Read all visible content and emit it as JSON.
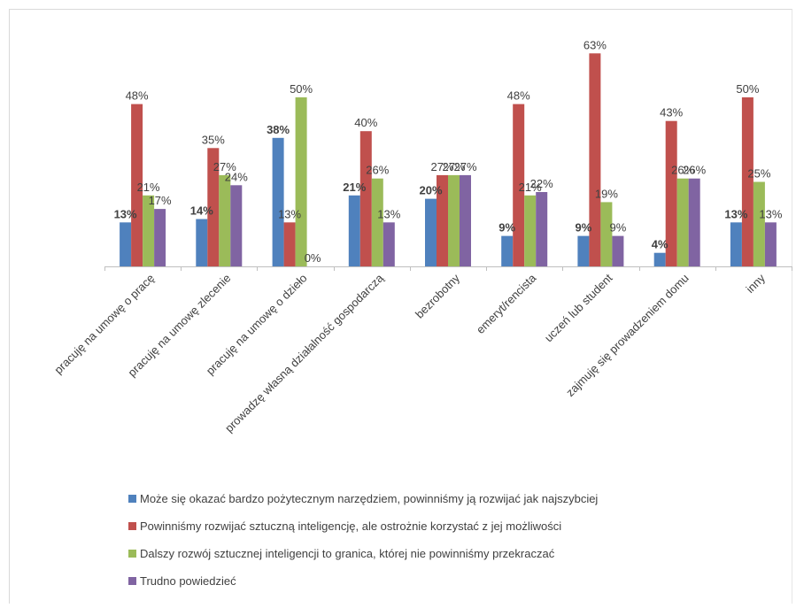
{
  "chart_data": {
    "type": "bar",
    "categories": [
      "pracuję na umowę o pracę",
      "pracuję na umowę zlecenie",
      "pracuję na umowę o dzieło",
      "prowadzę własną działalność gospodarczą",
      "bezrobotny",
      "emeryt/rencista",
      "uczeń lub student",
      "zajmuję się prowadzeniem domu",
      "inny"
    ],
    "series": [
      {
        "name": "Może się okazać bardzo pożytecznym narzędziem, powinniśmy ją rozwijać jak najszybciej",
        "color": "#4f81bd",
        "values": [
          13,
          14,
          38,
          21,
          20,
          9,
          9,
          4,
          13
        ],
        "labels": [
          "13%",
          "14%",
          "38%",
          "21%",
          "20%",
          "9%",
          "9%",
          "4%",
          "13%"
        ]
      },
      {
        "name": "Powinniśmy rozwijać sztuczną inteligencję, ale ostrożnie korzystać z jej możliwości",
        "color": "#c0504d",
        "values": [
          48,
          35,
          13,
          40,
          27,
          48,
          63,
          43,
          50
        ],
        "labels": [
          "48%",
          "35%",
          "13%",
          "40%",
          "27%",
          "48%",
          "63%",
          "43%",
          "50%"
        ]
      },
      {
        "name": "Dalszy rozwój sztucznej inteligencji to granica, której nie powinniśmy przekraczać",
        "color": "#9bbb59",
        "values": [
          21,
          27,
          50,
          26,
          27,
          21,
          19,
          26,
          25
        ],
        "labels": [
          "21%",
          "27%",
          "50%",
          "26%",
          "27%",
          "21%",
          "19%",
          "26%",
          "25%"
        ]
      },
      {
        "name": "Trudno powiedzieć",
        "color": "#8064a2",
        "values": [
          17,
          24,
          0,
          13,
          27,
          22,
          9,
          26,
          13
        ],
        "labels": [
          "17%",
          "24%",
          "0%",
          "13%",
          "27%",
          "22%",
          "9%",
          "26%",
          "13%"
        ]
      }
    ],
    "ylim": [
      0,
      70
    ],
    "grid": false,
    "legend_position": "bottom",
    "title": "",
    "xlabel": "",
    "ylabel": ""
  }
}
